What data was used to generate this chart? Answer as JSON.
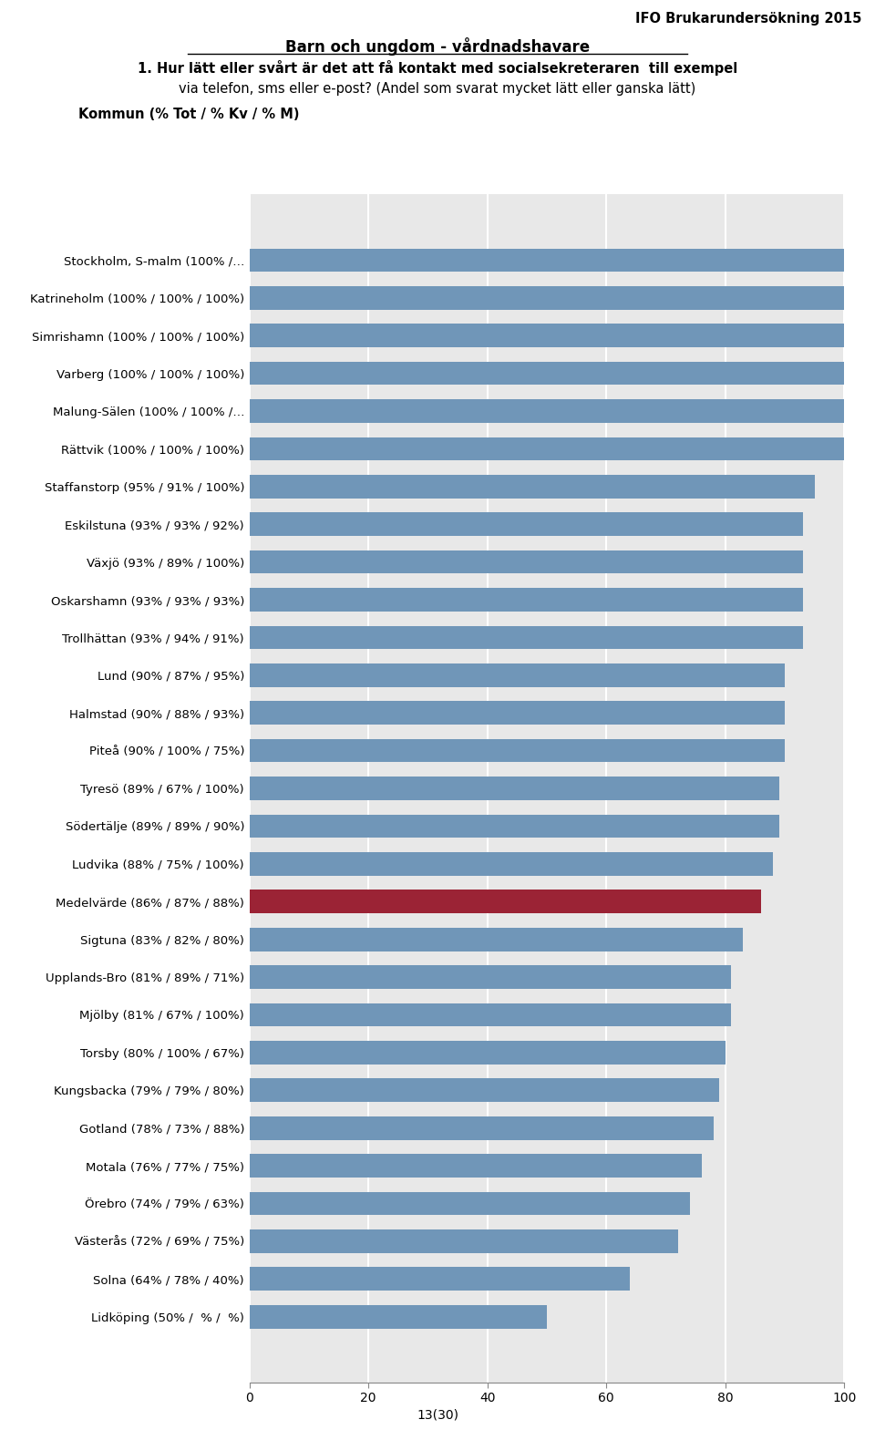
{
  "header_right": "IFO Brukarundersökning 2015",
  "title_line1": "Barn och ungdom - vårdnadshavare",
  "title_line2": "1. Hur lätt eller svårt är det att få kontakt med socialsekreteraren  till exempel",
  "title_line3_bold": "via telefon, sms eller e-post?",
  "title_line3_normal": " (Andel som svarat mycket lätt eller ganska lätt)",
  "title_line4": "Kommun (% Tot / % Kv / % M)",
  "footer": "13(30)",
  "categories": [
    "Stockholm, S-malm (100% /…",
    "Katrineholm (100% / 100% / 100%)",
    "Simrishamn (100% / 100% / 100%)",
    "Varberg (100% / 100% / 100%)",
    "Malung-Sälen (100% / 100% /…",
    "Rättvik (100% / 100% / 100%)",
    "Staffanstorp (95% / 91% / 100%)",
    "Eskilstuna (93% / 93% / 92%)",
    "Växjö (93% / 89% / 100%)",
    "Oskarshamn (93% / 93% / 93%)",
    "Trollhättan (93% / 94% / 91%)",
    "Lund (90% / 87% / 95%)",
    "Halmstad (90% / 88% / 93%)",
    "Piteå (90% / 100% / 75%)",
    "Tyresö (89% / 67% / 100%)",
    "Södertälje (89% / 89% / 90%)",
    "Ludvika (88% / 75% / 100%)",
    "Medelvärde (86% / 87% / 88%)",
    "Sigtuna (83% / 82% / 80%)",
    "Upplands-Bro (81% / 89% / 71%)",
    "Mjölby (81% / 67% / 100%)",
    "Torsby (80% / 100% / 67%)",
    "Kungsbacka (79% / 79% / 80%)",
    "Gotland (78% / 73% / 88%)",
    "Motala (76% / 77% / 75%)",
    "Örebro (74% / 79% / 63%)",
    "Västerås (72% / 69% / 75%)",
    "Solna (64% / 78% / 40%)",
    "Lidköping (50% /  % /  %)"
  ],
  "values": [
    100,
    100,
    100,
    100,
    100,
    100,
    95,
    93,
    93,
    93,
    93,
    90,
    90,
    90,
    89,
    89,
    88,
    86,
    83,
    81,
    81,
    80,
    79,
    78,
    76,
    74,
    72,
    64,
    50
  ],
  "bar_color_default": "#7096b8",
  "bar_color_highlight": "#9b2335",
  "highlight_index": 17,
  "xlim_min": 0,
  "xlim_max": 100,
  "xticks": [
    0,
    20,
    40,
    60,
    80,
    100
  ],
  "background_color": "#ffffff",
  "axes_bg_color": "#e8e8e8",
  "grid_color": "#ffffff",
  "bar_height": 0.62
}
